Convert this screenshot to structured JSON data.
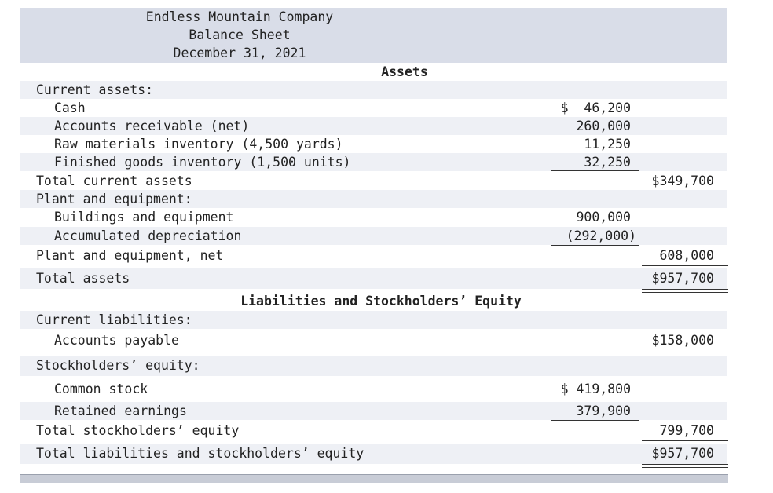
{
  "header": {
    "company": "Endless Mountain Company",
    "statement": "Balance Sheet",
    "date": "December 31, 2021"
  },
  "assets": {
    "heading": "Assets",
    "current_label": "Current assets:",
    "cash_label": "Cash",
    "cash_value": "$  46,200",
    "ar_label": "Accounts receivable (net)",
    "ar_value": "260,000",
    "raw_label": "Raw materials inventory (4,500 yards)",
    "raw_value": "11,250",
    "fg_label": "Finished goods inventory (1,500 units)",
    "fg_value": "32,250",
    "total_current_label": "Total current assets",
    "total_current_value": "$349,700",
    "plant_label": "Plant and equipment:",
    "buildings_label": "Buildings and equipment",
    "buildings_value": "900,000",
    "accum_label": "Accumulated depreciation",
    "accum_value": "(292,000)",
    "plant_net_label": "Plant and equipment, net",
    "plant_net_value": "608,000",
    "total_assets_label": "Total assets",
    "total_assets_value": "$957,700"
  },
  "liabilities": {
    "heading": "Liabilities and Stockholders’ Equity",
    "current_label": "Current liabilities:",
    "ap_label": "Accounts payable",
    "ap_value": "$158,000",
    "se_label": "Stockholders’ equity:",
    "common_label": "Common stock",
    "common_value": "$ 419,800",
    "retained_label": "Retained earnings",
    "retained_value": "379,900",
    "total_se_label": "Total stockholders’ equity",
    "total_se_value": "799,700",
    "total_le_label": "Total liabilities and stockholders’ equity",
    "total_le_value": "$957,700"
  }
}
